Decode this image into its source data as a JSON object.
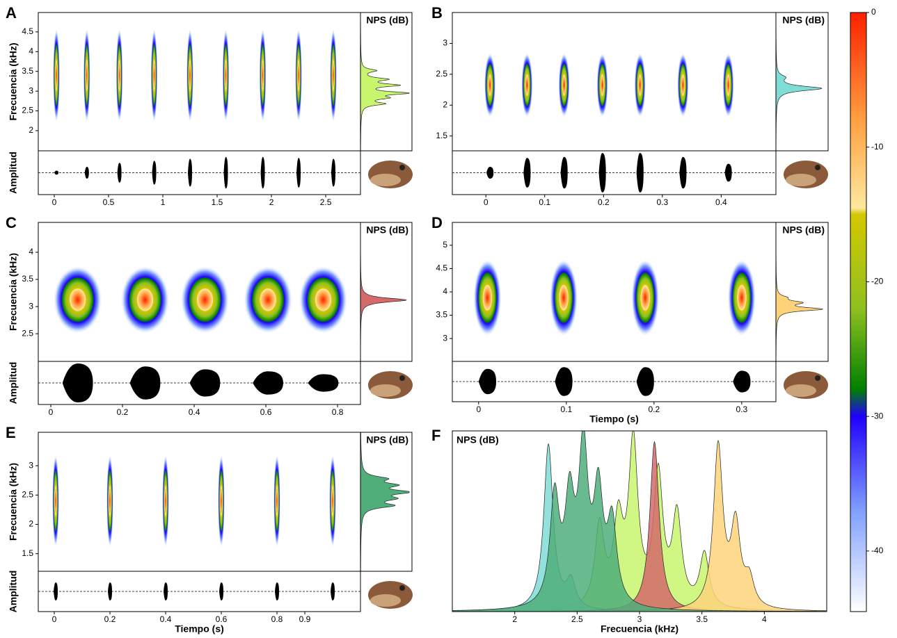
{
  "chart_data": [
    {
      "type": "spectrogram",
      "label": "A",
      "ylabel": "Frecuencia (kHz)",
      "amp_label": "Amplitud",
      "sidebar_title": "NPS (dB)",
      "x": [
        0.02,
        0.3,
        0.6,
        0.92,
        1.25,
        1.58,
        1.92,
        2.25,
        2.57
      ],
      "duration": 0.02,
      "band": [
        2.2,
        4.6
      ],
      "amplitudes": [
        0.1,
        0.3,
        0.5,
        0.6,
        0.7,
        0.8,
        0.8,
        0.75,
        0.7
      ],
      "xlim": [
        -0.147,
        2.82
      ],
      "xticks": [
        0,
        0.5,
        1,
        1.5,
        2,
        2.5
      ],
      "ylim": [
        1.49,
        4.99
      ],
      "yticks": [
        2,
        2.5,
        3,
        3.5,
        4,
        4.5
      ]
    },
    {
      "type": "spectrogram",
      "label": "B",
      "sidebar_title": "NPS (dB)",
      "x": [
        0.007,
        0.07,
        0.133,
        0.198,
        0.262,
        0.335,
        0.412
      ],
      "duration": 0.012,
      "band": [
        1.8,
        2.85
      ],
      "amplitudes": [
        0.3,
        0.75,
        0.8,
        1,
        1,
        0.8,
        0.45
      ],
      "xlim": [
        -0.057,
        0.493
      ],
      "xticks": [
        0,
        0.1,
        0.2,
        0.3,
        0.4
      ],
      "ylim": [
        1.26,
        3.5
      ],
      "yticks": [
        1.5,
        2,
        2.5,
        3
      ]
    },
    {
      "type": "spectrogram",
      "label": "C",
      "ylabel": "Frecuencia (kHz)",
      "amp_label": "Amplitud",
      "sidebar_title": "NPS (dB)",
      "x": [
        0.075,
        0.263,
        0.43,
        0.606,
        0.76
      ],
      "duration": 0.085,
      "band": [
        2.5,
        3.75
      ],
      "amplitudes": [
        1,
        0.85,
        0.7,
        0.6,
        0.45
      ],
      "xlim": [
        -0.035,
        0.864
      ],
      "xticks": [
        0,
        0.2,
        0.4,
        0.6,
        0.8
      ],
      "ylim": [
        1.99,
        4.55
      ],
      "yticks": [
        2.5,
        3,
        3.5,
        4
      ]
    },
    {
      "type": "spectrogram",
      "label": "D",
      "xlabel": "Tiempo (s)",
      "sidebar_title": "NPS (dB)",
      "x": [
        0.01,
        0.097,
        0.19,
        0.3
      ],
      "duration": 0.02,
      "band": [
        3.05,
        4.7
      ],
      "amplitudes": [
        0.7,
        0.8,
        0.8,
        0.6
      ],
      "xlim": [
        -0.03,
        0.339
      ],
      "xticks": [
        0,
        0.1,
        0.2,
        0.3
      ],
      "ylim": [
        2.51,
        5.49
      ],
      "yticks": [
        3,
        3.5,
        4,
        4.5,
        5
      ]
    },
    {
      "type": "spectrogram",
      "label": "E",
      "ylabel": "Frecuencia (kHz)",
      "amp_label": "Amplitud",
      "xlabel": "Tiempo (s)",
      "sidebar_title": "NPS (dB)",
      "x": [
        0.005,
        0.2,
        0.4,
        0.6,
        0.8,
        1.0
      ],
      "duration": 0.01,
      "band": [
        1.6,
        3.2
      ],
      "amplitudes": [
        0.5,
        0.5,
        0.5,
        0.5,
        0.5,
        0.5
      ],
      "xlim": [
        -0.0575,
        1.1
      ],
      "xticks": [
        0,
        0.2,
        0.4,
        0.6,
        0.8,
        0.9
      ],
      "ylim": [
        1.2,
        3.57
      ],
      "yticks": [
        1.5,
        2,
        2.5,
        3
      ]
    },
    {
      "type": "spectrum",
      "label": "F",
      "title": "NPS (dB)",
      "xlabel": "Frecuencia (kHz)",
      "xlim": [
        1.5,
        4.5
      ],
      "xticks": [
        2,
        2.5,
        3,
        3.5,
        4
      ],
      "ylim": [
        0,
        1
      ],
      "series": [
        {
          "color": "#c8f56e",
          "peak_freqs": [
            2.68,
            2.83,
            2.95,
            3.15,
            3.3,
            3.52
          ],
          "peak_levels": [
            0.45,
            0.45,
            0.9,
            0.72,
            0.5,
            0.3
          ]
        },
        {
          "color": "#7fdcd6",
          "peak_freqs": [
            2.27,
            2.45
          ],
          "peak_levels": [
            0.92,
            0.15
          ]
        },
        {
          "color": "#d46a6a",
          "peak_freqs": [
            3.12
          ],
          "peak_levels": [
            0.94
          ]
        },
        {
          "color": "#fdd37a",
          "peak_freqs": [
            3.63,
            3.77,
            3.88
          ],
          "peak_levels": [
            0.9,
            0.45,
            0.15
          ]
        },
        {
          "color": "#4fae7a",
          "peak_freqs": [
            2.32,
            2.44,
            2.55,
            2.67,
            2.78
          ],
          "peak_levels": [
            0.6,
            0.55,
            0.85,
            0.6,
            0.45
          ]
        }
      ]
    },
    {
      "type": "colorbar",
      "ylim": [
        -44.5,
        0
      ],
      "yticks": [
        0,
        -10,
        -20,
        -30,
        -40
      ],
      "levels": [
        0,
        -8,
        -14.5,
        -15,
        -22,
        -28,
        -30,
        -37,
        -44.5
      ],
      "colors": [
        "#ff2000",
        "#ffa040",
        "#fde8a0",
        "#d4c800",
        "#8fc020",
        "#008000",
        "#2000ff",
        "#80a0ff",
        "#ffffff"
      ]
    }
  ]
}
